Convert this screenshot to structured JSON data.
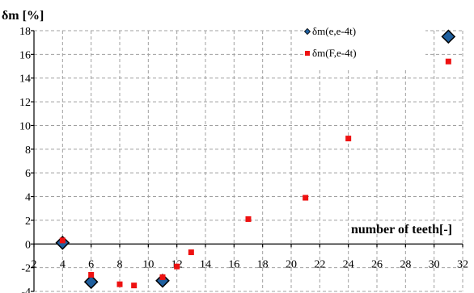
{
  "chart_data": {
    "type": "scatter",
    "title": "",
    "ylabel": "δm [%]",
    "xlabel": "number of teeth[-]",
    "xlim": [
      2,
      32
    ],
    "ylim": [
      -4,
      18
    ],
    "xticks": [
      2,
      4,
      6,
      8,
      10,
      12,
      14,
      16,
      18,
      20,
      22,
      24,
      26,
      28,
      30,
      32
    ],
    "yticks": [
      -4,
      -2,
      0,
      2,
      4,
      6,
      8,
      10,
      12,
      14,
      16,
      18
    ],
    "grid": true,
    "legend_position": "top-right",
    "series": [
      {
        "name": "δm(e,e-4t)",
        "marker": "diamond",
        "color": "#1f5f9e",
        "points": [
          {
            "x": 4,
            "y": 0.1
          },
          {
            "x": 6,
            "y": -3.2
          },
          {
            "x": 11,
            "y": -3.1
          },
          {
            "x": 31,
            "y": 17.5
          }
        ]
      },
      {
        "name": "δm(F,e-4t)",
        "marker": "square",
        "color": "#ee1111",
        "points": [
          {
            "x": 4,
            "y": 0.3
          },
          {
            "x": 6,
            "y": -2.6
          },
          {
            "x": 8,
            "y": -3.4
          },
          {
            "x": 9,
            "y": -3.5
          },
          {
            "x": 11,
            "y": -2.8
          },
          {
            "x": 12,
            "y": -1.9
          },
          {
            "x": 13,
            "y": -0.7
          },
          {
            "x": 17,
            "y": 2.1
          },
          {
            "x": 21,
            "y": 3.9
          },
          {
            "x": 24,
            "y": 8.9
          },
          {
            "x": 31,
            "y": 15.4
          }
        ]
      }
    ]
  }
}
